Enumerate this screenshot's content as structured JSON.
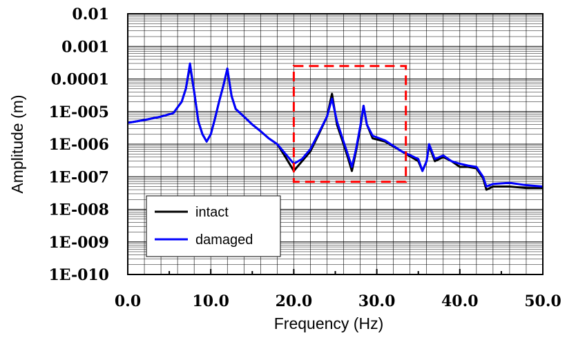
{
  "chart_data": {
    "type": "line",
    "title": "",
    "xlabel": "Frequency (Hz)",
    "ylabel": "Amplitude (m)",
    "xlim": [
      0,
      50
    ],
    "ylim": [
      1e-10,
      0.01
    ],
    "y_scale": "log",
    "grid": "on",
    "legend_position": "bottom-left",
    "x_tick_labels": [
      "0.0",
      "10.0",
      "20.0",
      "30.0",
      "40.0",
      "50.0"
    ],
    "x_ticks": [
      0,
      10,
      20,
      30,
      40,
      50
    ],
    "y_tick_labels": [
      "1E-010",
      "1E-009",
      "1E-008",
      "1E-007",
      "1E-006",
      "1E-005",
      "0.0001",
      "0.001",
      "0.01"
    ],
    "y_ticks": [
      1e-10,
      1e-09,
      1e-08,
      1e-07,
      1e-06,
      1e-05,
      0.0001,
      0.001,
      0.01
    ],
    "highlight_box": {
      "x": [
        20.0,
        33.5
      ],
      "y": [
        7e-08,
        0.00025
      ],
      "color": "#ff0000",
      "style": "dashed"
    },
    "series": [
      {
        "name": "intact",
        "color": "#000000",
        "points": [
          [
            0.0,
            4.5e-06
          ],
          [
            2.0,
            5.5e-06
          ],
          [
            4.0,
            7e-06
          ],
          [
            5.5,
            9e-06
          ],
          [
            6.5,
            2e-05
          ],
          [
            7.0,
            5e-05
          ],
          [
            7.5,
            0.00025
          ],
          [
            8.0,
            4e-05
          ],
          [
            8.5,
            5e-06
          ],
          [
            9.0,
            2e-06
          ],
          [
            9.5,
            1.2e-06
          ],
          [
            10.0,
            2e-06
          ],
          [
            10.5,
            6e-06
          ],
          [
            11.0,
            2e-05
          ],
          [
            11.5,
            6e-05
          ],
          [
            12.0,
            0.0002
          ],
          [
            12.5,
            3e-05
          ],
          [
            13.0,
            1.2e-05
          ],
          [
            14.0,
            7e-06
          ],
          [
            15.0,
            4e-06
          ],
          [
            16.0,
            2.5e-06
          ],
          [
            17.0,
            1.5e-06
          ],
          [
            18.0,
            1e-06
          ],
          [
            19.0,
            4e-07
          ],
          [
            20.0,
            1.5e-07
          ],
          [
            21.0,
            3e-07
          ],
          [
            22.0,
            6e-07
          ],
          [
            23.0,
            2e-06
          ],
          [
            24.0,
            7e-06
          ],
          [
            24.6,
            3.5e-05
          ],
          [
            25.2,
            4e-06
          ],
          [
            26.0,
            1e-06
          ],
          [
            26.5,
            4e-07
          ],
          [
            27.0,
            1.5e-07
          ],
          [
            27.5,
            6e-07
          ],
          [
            28.0,
            3e-06
          ],
          [
            28.4,
            1.5e-05
          ],
          [
            28.8,
            4e-06
          ],
          [
            29.5,
            1.5e-06
          ],
          [
            31.0,
            1.2e-06
          ],
          [
            33.0,
            6e-07
          ],
          [
            35.0,
            3e-07
          ],
          [
            35.5,
            1.5e-07
          ],
          [
            36.0,
            3e-07
          ],
          [
            36.3,
            9e-07
          ],
          [
            37.0,
            3e-07
          ],
          [
            38.0,
            4e-07
          ],
          [
            39.0,
            3e-07
          ],
          [
            40.0,
            2e-07
          ],
          [
            41.0,
            2e-07
          ],
          [
            42.0,
            1.8e-07
          ],
          [
            42.8,
            9e-08
          ],
          [
            43.2,
            4e-08
          ],
          [
            44.0,
            5e-08
          ],
          [
            46.0,
            5e-08
          ],
          [
            48.0,
            4.5e-08
          ],
          [
            50.0,
            4.5e-08
          ]
        ]
      },
      {
        "name": "damaged",
        "color": "#0000ff",
        "points": [
          [
            0.0,
            4.5e-06
          ],
          [
            2.0,
            5.5e-06
          ],
          [
            4.0,
            7e-06
          ],
          [
            5.5,
            9e-06
          ],
          [
            6.5,
            2e-05
          ],
          [
            7.0,
            5e-05
          ],
          [
            7.5,
            0.0003
          ],
          [
            8.0,
            4e-05
          ],
          [
            8.5,
            5e-06
          ],
          [
            9.0,
            2e-06
          ],
          [
            9.5,
            1.2e-06
          ],
          [
            10.0,
            2e-06
          ],
          [
            10.5,
            6e-06
          ],
          [
            11.0,
            2e-05
          ],
          [
            11.5,
            6e-05
          ],
          [
            12.0,
            0.00021
          ],
          [
            12.5,
            3e-05
          ],
          [
            13.0,
            1.2e-05
          ],
          [
            14.0,
            7e-06
          ],
          [
            15.0,
            4e-06
          ],
          [
            16.0,
            2.5e-06
          ],
          [
            17.0,
            1.5e-06
          ],
          [
            18.0,
            1e-06
          ],
          [
            19.0,
            5e-07
          ],
          [
            20.0,
            2.5e-07
          ],
          [
            21.0,
            3.5e-07
          ],
          [
            22.0,
            7e-07
          ],
          [
            23.0,
            2.2e-06
          ],
          [
            24.0,
            7e-06
          ],
          [
            24.6,
            2.5e-05
          ],
          [
            25.2,
            5e-06
          ],
          [
            26.0,
            1.2e-06
          ],
          [
            26.5,
            5e-07
          ],
          [
            27.0,
            2e-07
          ],
          [
            27.5,
            7e-07
          ],
          [
            28.0,
            3.5e-06
          ],
          [
            28.4,
            1.5e-05
          ],
          [
            28.8,
            4e-06
          ],
          [
            29.5,
            1.8e-06
          ],
          [
            31.0,
            1.3e-06
          ],
          [
            33.0,
            6e-07
          ],
          [
            35.0,
            3.5e-07
          ],
          [
            35.5,
            1.5e-07
          ],
          [
            36.0,
            3e-07
          ],
          [
            36.3,
            1e-06
          ],
          [
            37.0,
            3.5e-07
          ],
          [
            38.0,
            4.5e-07
          ],
          [
            39.0,
            3e-07
          ],
          [
            40.0,
            2.5e-07
          ],
          [
            41.0,
            2.2e-07
          ],
          [
            42.0,
            2e-07
          ],
          [
            42.8,
            1e-07
          ],
          [
            43.2,
            5e-08
          ],
          [
            44.0,
            6e-08
          ],
          [
            46.0,
            6.5e-08
          ],
          [
            48.0,
            5.5e-08
          ],
          [
            50.0,
            5e-08
          ]
        ]
      }
    ]
  }
}
